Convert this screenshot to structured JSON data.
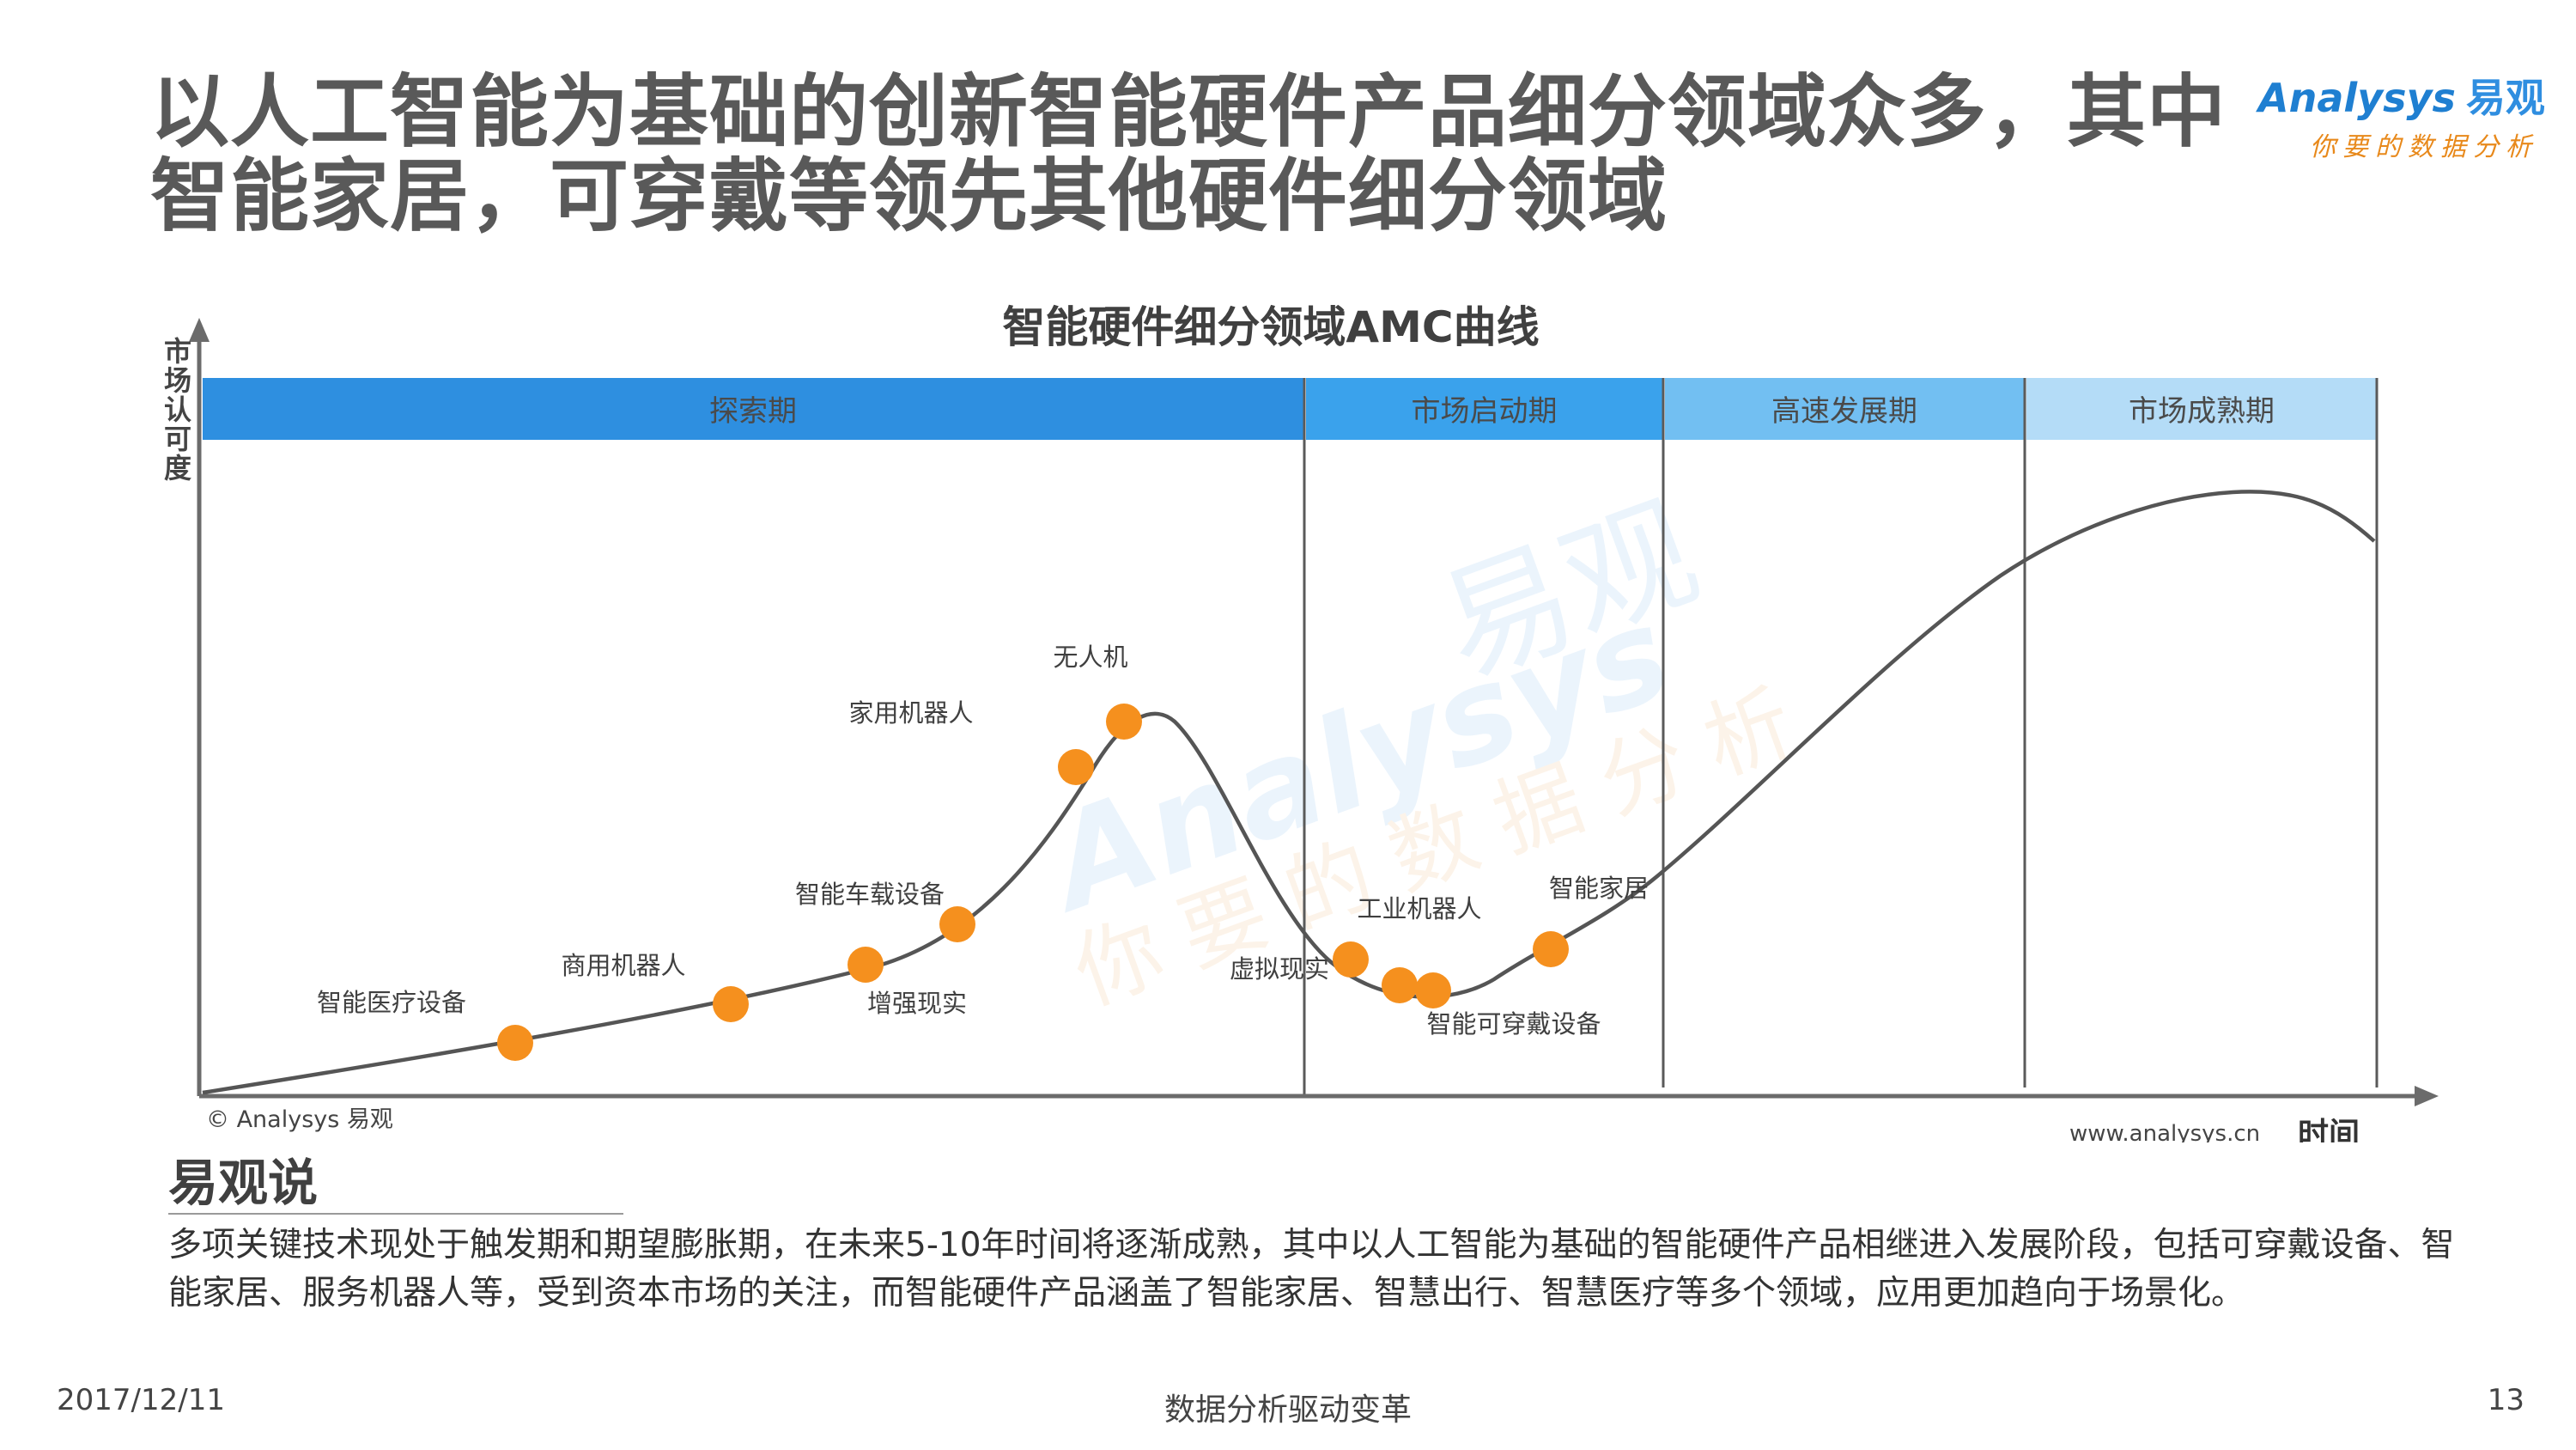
{
  "title_lines": [
    "以人工智能为基础的创新智能硬件产品细分领域众多，其中",
    "智能家居，可穿戴等领先其他硬件细分领域"
  ],
  "logo": {
    "en": "Analysys",
    "cn": "易观",
    "slogan": "你要的数据分析"
  },
  "chart_data": {
    "type": "line",
    "title": "智能硬件细分领域AMC曲线",
    "ylabel": "市场认可度",
    "xlabel": "时间",
    "copyright": "© Analysys 易观",
    "website": "www.analysys.cn",
    "stages": [
      "探索期",
      "市场启动期",
      "高速发展期",
      "市场成熟期"
    ],
    "stage_colors": [
      "#2e8fe0",
      "#3aa2ec",
      "#72bff2",
      "#b4dcf7"
    ],
    "points": [
      {
        "label": "智能医疗设备"
      },
      {
        "label": "商用机器人"
      },
      {
        "label": "增强现实"
      },
      {
        "label": "智能车载设备"
      },
      {
        "label": "家用机器人"
      },
      {
        "label": "无人机"
      },
      {
        "label": "虚拟现实"
      },
      {
        "label": "智能可穿戴设备"
      },
      {
        "label": "工业机器人"
      },
      {
        "label": "智能家居"
      }
    ],
    "marker_color": "#f5901e",
    "line_color": "#555555"
  },
  "section": {
    "title": "易观说",
    "text": "多项关键技术现处于触发期和期望膨胀期，在未来5-10年时间将逐渐成熟，其中以人工智能为基础的智能硬件产品相继进入发展阶段，包括可穿戴设备、智能家居、服务机器人等，受到资本市场的关注，而智能硬件产品涵盖了智能家居、智慧出行、智慧医疗等多个领域，应用更加趋向于场景化。"
  },
  "footer": {
    "date": "2017/12/11",
    "center": "数据分析驱动变革",
    "page": "13"
  }
}
